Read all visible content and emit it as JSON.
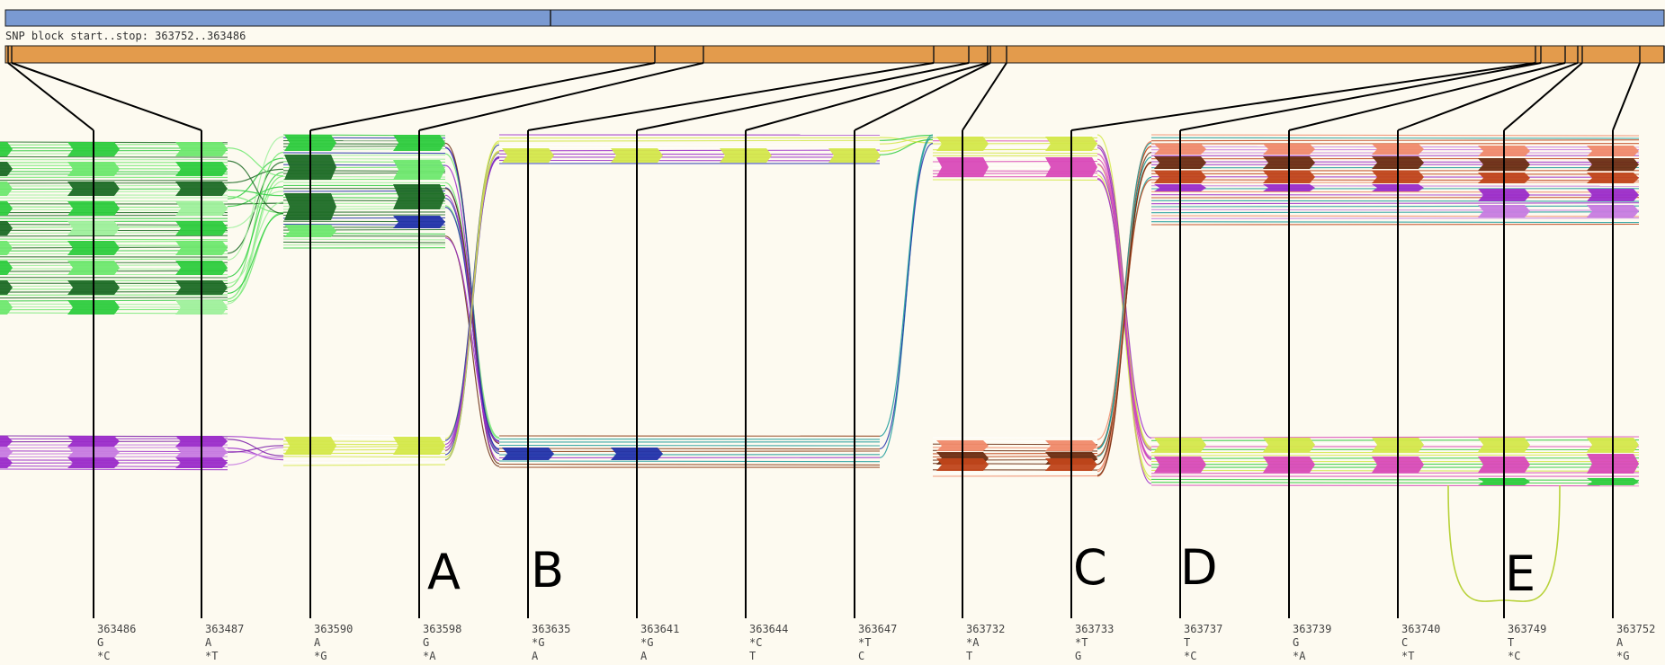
{
  "header_label": "SNP block start..stop: 363752..363486",
  "colors": {
    "background": "#fdfaf0",
    "chromosome_bar": "#7a9ad2",
    "block_bar": "#e39b4c",
    "green_palette": [
      "#2ecc3e",
      "#6fe86f",
      "#1e6b26",
      "#9ff09c"
    ],
    "purple_palette": [
      "#9b2cc9",
      "#c77be0",
      "#7a1aa8"
    ],
    "yellow": "#d4e84a",
    "magenta": "#d94ab8",
    "salmon": "#f08a6a",
    "brown": "#6b2d12",
    "rust": "#c0451a"
  },
  "annotations": [
    {
      "letter": "A"
    },
    {
      "letter": "B"
    },
    {
      "letter": "C"
    },
    {
      "letter": "D"
    },
    {
      "letter": "E"
    }
  ],
  "snps": [
    {
      "pos": "363486",
      "allele_top": "G",
      "allele_bottom": "*C"
    },
    {
      "pos": "363487",
      "allele_top": "A",
      "allele_bottom": "*T"
    },
    {
      "pos": "363590",
      "allele_top": "A",
      "allele_bottom": "*G"
    },
    {
      "pos": "363598",
      "allele_top": "G",
      "allele_bottom": "*A"
    },
    {
      "pos": "363635",
      "allele_top": "*G",
      "allele_bottom": "A"
    },
    {
      "pos": "363641",
      "allele_top": "*G",
      "allele_bottom": "A"
    },
    {
      "pos": "363644",
      "allele_top": "*C",
      "allele_bottom": "T"
    },
    {
      "pos": "363647",
      "allele_top": "*T",
      "allele_bottom": "C"
    },
    {
      "pos": "363732",
      "allele_top": "*A",
      "allele_bottom": "T"
    },
    {
      "pos": "363733",
      "allele_top": "*T",
      "allele_bottom": "G"
    },
    {
      "pos": "363737",
      "allele_top": "T",
      "allele_bottom": "*C"
    },
    {
      "pos": "363739",
      "allele_top": "G",
      "allele_bottom": "*A"
    },
    {
      "pos": "363740",
      "allele_top": "C",
      "allele_bottom": "*T"
    },
    {
      "pos": "363749",
      "allele_top": "T",
      "allele_bottom": "*C"
    },
    {
      "pos": "363752",
      "allele_top": "A",
      "allele_bottom": "*G"
    }
  ]
}
